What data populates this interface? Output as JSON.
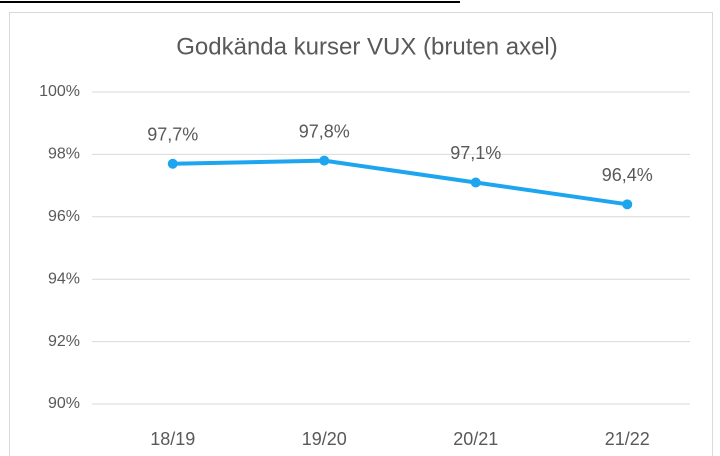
{
  "chart_data": {
    "type": "line",
    "title": "Godkända kurser VUX (bruten axel)",
    "categories": [
      "18/19",
      "19/20",
      "20/21",
      "21/22"
    ],
    "series": [
      {
        "name": "Godkända kurser",
        "color": "#1ea5ef",
        "values": [
          97.7,
          97.8,
          97.1,
          96.4
        ],
        "value_labels": [
          "97,7%",
          "97,8%",
          "97,1%",
          "96,4%"
        ]
      }
    ],
    "ylim": [
      90,
      100
    ],
    "yticks": [
      {
        "value": 90,
        "label": "90%"
      },
      {
        "value": 92,
        "label": "92%"
      },
      {
        "value": 94,
        "label": "94%"
      },
      {
        "value": 96,
        "label": "96%"
      },
      {
        "value": 98,
        "label": "98%"
      },
      {
        "value": 100,
        "label": "100%"
      }
    ],
    "grid": true
  }
}
